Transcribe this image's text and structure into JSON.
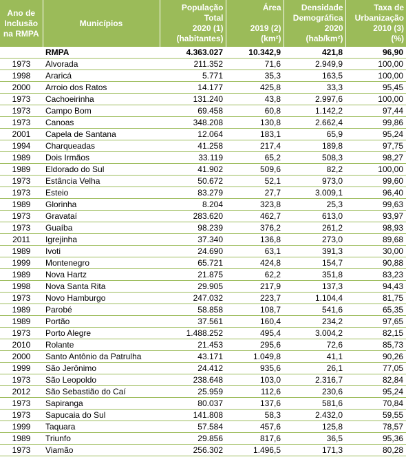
{
  "headers": [
    {
      "lines": [
        "Ano de",
        "Inclusão",
        "na RMPA"
      ]
    },
    {
      "lines": [
        "Municípios"
      ]
    },
    {
      "lines": [
        "População",
        "Total",
        "2020 (1)",
        "(habitantes)"
      ]
    },
    {
      "lines": [
        "Área",
        "",
        "2019 (2)",
        "(km²)"
      ]
    },
    {
      "lines": [
        "Densidade",
        "Demográfica",
        "2020",
        "(hab/km²)"
      ]
    },
    {
      "lines": [
        "Taxa de",
        "Urbanização",
        "2010 (3)",
        "(%)"
      ]
    }
  ],
  "rows": [
    [
      "",
      "RMPA",
      "4.363.027",
      "10.342,9",
      "421,8",
      "96,90"
    ],
    [
      "1973",
      "Alvorada",
      "211.352",
      "71,6",
      "2.949,9",
      "100,00"
    ],
    [
      "1998",
      "Araricá",
      "5.771",
      "35,3",
      "163,5",
      "100,00"
    ],
    [
      "2000",
      "Arroio dos Ratos",
      "14.177",
      "425,8",
      "33,3",
      "95,45"
    ],
    [
      "1973",
      "Cachoeirinha",
      "131.240",
      "43,8",
      "2.997,6",
      "100,00"
    ],
    [
      "1973",
      "Campo Bom",
      "69.458",
      "60,8",
      "1.142,2",
      "97,44"
    ],
    [
      "1973",
      "Canoas",
      "348.208",
      "130,8",
      "2.662,4",
      "99,86"
    ],
    [
      "2001",
      "Capela de Santana",
      "12.064",
      "183,1",
      "65,9",
      "95,24"
    ],
    [
      "1994",
      "Charqueadas",
      "41.258",
      "217,4",
      "189,8",
      "97,75"
    ],
    [
      "1989",
      "Dois Irmãos",
      "33.119",
      "65,2",
      "508,3",
      "98,27"
    ],
    [
      "1989",
      "Eldorado do Sul",
      "41.902",
      "509,6",
      "82,2",
      "100,00"
    ],
    [
      "1973",
      "Estância Velha",
      "50.672",
      "52,1",
      "973,0",
      "99,60"
    ],
    [
      "1973",
      "Esteio",
      "83.279",
      "27,7",
      "3.009,1",
      "96,40"
    ],
    [
      "1989",
      "Glorinha",
      "8.204",
      "323,8",
      "25,3",
      "99,63"
    ],
    [
      "1973",
      "Gravataí",
      "283.620",
      "462,7",
      "613,0",
      "93,97"
    ],
    [
      "1973",
      "Guaíba",
      "98.239",
      "376,2",
      "261,2",
      "98,93"
    ],
    [
      "2011",
      "Igrejinha",
      "37.340",
      "136,8",
      "273,0",
      "89,68"
    ],
    [
      "1989",
      "Ivoti",
      "24.690",
      "63,1",
      "391,3",
      "30,00"
    ],
    [
      "1999",
      "Montenegro",
      "65.721",
      "424,8",
      "154,7",
      "90,88"
    ],
    [
      "1989",
      "Nova Hartz",
      "21.875",
      "62,2",
      "351,8",
      "83,23"
    ],
    [
      "1998",
      "Nova Santa Rita",
      "29.905",
      "217,9",
      "137,3",
      "94,43"
    ],
    [
      "1973",
      "Novo Hamburgo",
      "247.032",
      "223,7",
      "1.104,4",
      "81,75"
    ],
    [
      "1989",
      "Parobé",
      "58.858",
      "108,7",
      "541,6",
      "65,35"
    ],
    [
      "1989",
      "Portão",
      "37.561",
      "160,4",
      "234,2",
      "97,65"
    ],
    [
      "1973",
      "Porto Alegre",
      "1.488.252",
      "495,4",
      "3.004,2",
      "82,15"
    ],
    [
      "2010",
      "Rolante",
      "21.453",
      "295,6",
      "72,6",
      "85,73"
    ],
    [
      "2000",
      "Santo Antônio da Patrulha",
      "43.171",
      "1.049,8",
      "41,1",
      "90,26"
    ],
    [
      "1999",
      "São Jerônimo",
      "24.412",
      "935,6",
      "26,1",
      "77,05"
    ],
    [
      "1973",
      "São Leopoldo",
      "238.648",
      "103,0",
      "2.316,7",
      "82,84"
    ],
    [
      "2012",
      "São Sebastião do Caí",
      "25.959",
      "112,6",
      "230,6",
      "95,24"
    ],
    [
      "1973",
      "Sapiranga",
      "80.037",
      "137,6",
      "581,6",
      "70,84"
    ],
    [
      "1973",
      "Sapucaia do Sul",
      "141.808",
      "58,3",
      "2.432,0",
      "59,55"
    ],
    [
      "1999",
      "Taquara",
      "57.584",
      "457,6",
      "125,8",
      "78,57"
    ],
    [
      "1989",
      "Triunfo",
      "29.856",
      "817,6",
      "36,5",
      "95,36"
    ],
    [
      "1973",
      "Viamão",
      "256.302",
      "1.496,5",
      "171,3",
      "80,28"
    ]
  ],
  "colors": {
    "header_bg": "#9bbb59",
    "header_text": "#ffffff",
    "rule": "#9bbb59"
  }
}
